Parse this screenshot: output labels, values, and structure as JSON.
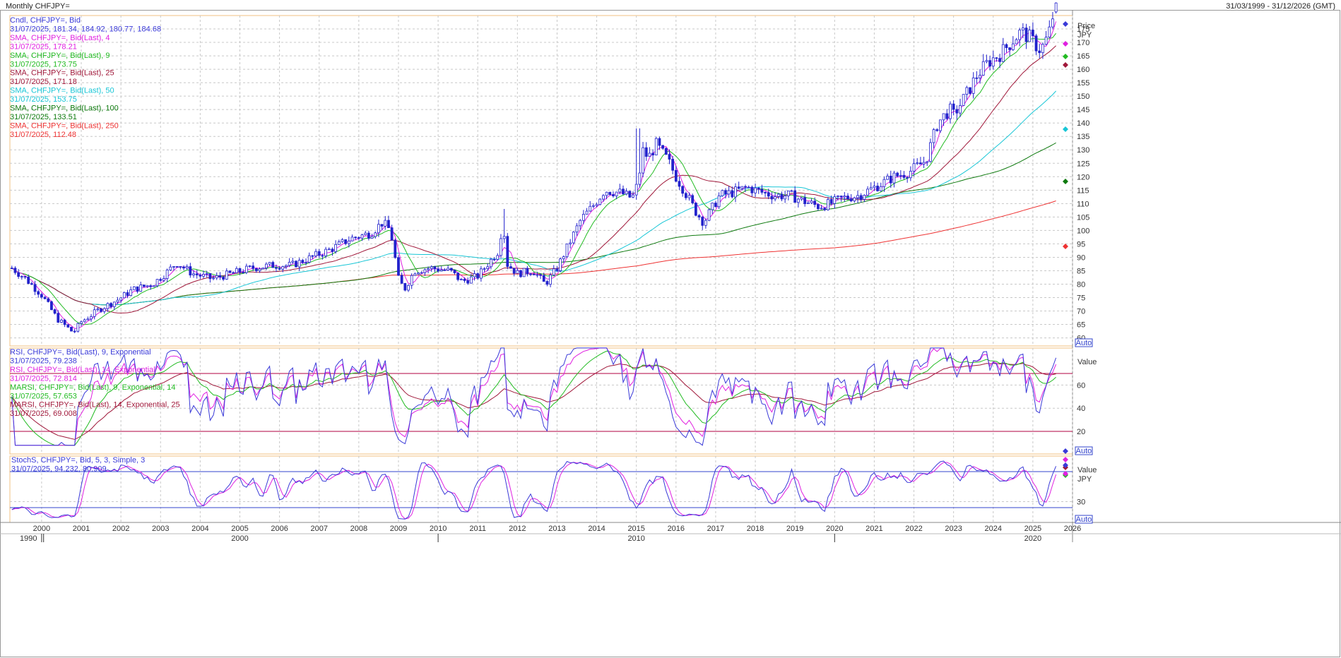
{
  "window": {
    "title": "Monthly CHFJPY=",
    "range": "31/03/1999 - 31/12/2026 (GMT)"
  },
  "price_panel": {
    "unit_label": "Price",
    "currency": "JPY",
    "auto_label": "Auto",
    "ticks": [
      "60",
      "65",
      "70",
      "75",
      "80",
      "85",
      "90",
      "95",
      "100",
      "105",
      "110",
      "115",
      "120",
      "125",
      "130",
      "135",
      "140",
      "145",
      "150",
      "155",
      "160",
      "165",
      "170",
      "175"
    ],
    "legend": [
      {
        "text": "Cndl, CHFJPY=, Bid",
        "color": "#3a3ad8"
      },
      {
        "text": "31/07/2025, 181.34, 184.92, 180.77, 184.68",
        "color": "#3a3ad8"
      },
      {
        "text": "SMA, CHFJPY=, Bid(Last),  4",
        "color": "#e020e0"
      },
      {
        "text": "31/07/2025, 178.21",
        "color": "#e020e0"
      },
      {
        "text": "SMA, CHFJPY=, Bid(Last),  9",
        "color": "#22bb22"
      },
      {
        "text": "31/07/2025, 173.75",
        "color": "#22bb22"
      },
      {
        "text": "SMA, CHFJPY=, Bid(Last),  25",
        "color": "#a0183a"
      },
      {
        "text": "31/07/2025, 171.18",
        "color": "#a0183a"
      },
      {
        "text": "SMA, CHFJPY=, Bid(Last),  50",
        "color": "#18c6d6"
      },
      {
        "text": "31/07/2025, 153.75",
        "color": "#18c6d6"
      },
      {
        "text": "SMA, CHFJPY=, Bid(Last),  100",
        "color": "#0e7a0e"
      },
      {
        "text": "31/07/2025, 133.51",
        "color": "#0e7a0e"
      },
      {
        "text": "SMA, CHFJPY=, Bid(Last),  250",
        "color": "#ee3333"
      },
      {
        "text": "31/07/2025, 112.48",
        "color": "#ee3333"
      }
    ]
  },
  "rsi_panel": {
    "unit_label": "Value",
    "auto_label": "Auto",
    "ticks": [
      "20",
      "40",
      "60"
    ],
    "legend": [
      {
        "text": "RSI, CHFJPY=, Bid(Last),  9, Exponential",
        "color": "#3a3ad8"
      },
      {
        "text": "31/07/2025, 79.238",
        "color": "#3a3ad8"
      },
      {
        "text": "RSI, CHFJPY=, Bid(Last),  14, Exponential",
        "color": "#e020e0"
      },
      {
        "text": "31/07/2025, 72.814",
        "color": "#e020e0"
      },
      {
        "text": "MARSI, CHFJPY=, Bid(Last),  9, Exponential, 14",
        "color": "#22bb22"
      },
      {
        "text": "31/07/2025, 57.653",
        "color": "#22bb22"
      },
      {
        "text": "MARSI, CHFJPY=, Bid(Last),  14, Exponential, 25",
        "color": "#a0183a"
      },
      {
        "text": "31/07/2025, 69.008",
        "color": "#a0183a"
      }
    ]
  },
  "stoch_panel": {
    "unit_label": "Value",
    "currency": "JPY",
    "auto_label": "Auto",
    "ticks": [
      "30"
    ],
    "legend": [
      {
        "text": "StochS, CHFJPY=, Bid,  5, 3, Simple, 3",
        "color": "#3a3ad8"
      },
      {
        "text": "31/07/2025, 94.232, 80.909",
        "color": "#3a3ad8"
      }
    ]
  },
  "x_axis": {
    "years": [
      "2000",
      "2001",
      "2002",
      "2003",
      "2004",
      "2005",
      "2006",
      "2007",
      "2008",
      "2009",
      "2010",
      "2011",
      "2012",
      "2013",
      "2014",
      "2015",
      "2016",
      "2017",
      "2018",
      "2019",
      "2020",
      "2021",
      "2022",
      "2023",
      "2024",
      "2025",
      "2026"
    ],
    "decades": [
      "1990",
      "2000",
      "2010",
      "2020"
    ]
  },
  "chart_data": {
    "type": "candlestick",
    "instrument": "CHFJPY=",
    "frequency": "Monthly",
    "price_anchors": [
      [
        1999.25,
        86
      ],
      [
        1999.6,
        82
      ],
      [
        2000.0,
        76
      ],
      [
        2000.4,
        67
      ],
      [
        2000.8,
        62
      ],
      [
        2001.0,
        66
      ],
      [
        2001.5,
        71
      ],
      [
        2001.9,
        74
      ],
      [
        2002.3,
        78
      ],
      [
        2002.8,
        80
      ],
      [
        2003.2,
        85
      ],
      [
        2003.4,
        88
      ],
      [
        2003.8,
        84
      ],
      [
        2004.3,
        82
      ],
      [
        2004.8,
        84
      ],
      [
        2005.3,
        86
      ],
      [
        2005.8,
        87
      ],
      [
        2006.3,
        87
      ],
      [
        2006.8,
        90
      ],
      [
        2007.3,
        93
      ],
      [
        2007.8,
        97
      ],
      [
        2008.3,
        99
      ],
      [
        2008.6,
        103
      ],
      [
        2008.8,
        100
      ],
      [
        2009.0,
        82
      ],
      [
        2009.15,
        78
      ],
      [
        2009.4,
        85
      ],
      [
        2009.8,
        86
      ],
      [
        2010.3,
        85
      ],
      [
        2010.6,
        81
      ],
      [
        2011.0,
        83
      ],
      [
        2011.5,
        92
      ],
      [
        2011.65,
        104
      ],
      [
        2011.7,
        88
      ],
      [
        2012.0,
        84
      ],
      [
        2012.4,
        85
      ],
      [
        2012.7,
        80
      ],
      [
        2013.0,
        86
      ],
      [
        2013.3,
        95
      ],
      [
        2013.6,
        104
      ],
      [
        2013.9,
        109
      ],
      [
        2014.2,
        115
      ],
      [
        2014.6,
        114
      ],
      [
        2014.9,
        112
      ],
      [
        2015.05,
        118
      ],
      [
        2015.15,
        130
      ],
      [
        2015.3,
        127
      ],
      [
        2015.5,
        132
      ],
      [
        2015.8,
        126
      ],
      [
        2016.0,
        120
      ],
      [
        2016.2,
        115
      ],
      [
        2016.5,
        107
      ],
      [
        2016.7,
        103
      ],
      [
        2016.9,
        108
      ],
      [
        2017.1,
        113
      ],
      [
        2017.4,
        114
      ],
      [
        2017.8,
        116
      ],
      [
        2018.2,
        114
      ],
      [
        2018.5,
        113
      ],
      [
        2018.9,
        113
      ],
      [
        2019.2,
        111
      ],
      [
        2019.6,
        109
      ],
      [
        2019.9,
        110
      ],
      [
        2020.2,
        112
      ],
      [
        2020.6,
        113
      ],
      [
        2021.0,
        116
      ],
      [
        2021.5,
        120
      ],
      [
        2021.9,
        122
      ],
      [
        2022.3,
        126
      ],
      [
        2022.6,
        140
      ],
      [
        2022.9,
        145
      ],
      [
        2023.0,
        143
      ],
      [
        2023.3,
        150
      ],
      [
        2023.6,
        158
      ],
      [
        2023.9,
        163
      ],
      [
        2024.2,
        166
      ],
      [
        2024.5,
        171
      ],
      [
        2024.7,
        174
      ],
      [
        2024.9,
        172
      ],
      [
        2025.2,
        167
      ],
      [
        2025.4,
        173
      ],
      [
        2025.58,
        184.68
      ]
    ],
    "last_candle": {
      "date": "31/07/2025",
      "open": 181.34,
      "high": 184.92,
      "low": 180.77,
      "close": 184.68
    },
    "series": [
      {
        "name": "SMA 4",
        "last": 178.21,
        "color": "#e020e0"
      },
      {
        "name": "SMA 9",
        "last": 173.75,
        "color": "#22bb22"
      },
      {
        "name": "SMA 25",
        "last": 171.18,
        "color": "#a0183a"
      },
      {
        "name": "SMA 50",
        "last": 153.75,
        "color": "#18c6d6"
      },
      {
        "name": "SMA 100",
        "last": 133.51,
        "color": "#0e7a0e"
      },
      {
        "name": "SMA 250",
        "last": 112.48,
        "color": "#ee3333"
      }
    ],
    "rsi": {
      "rsi9_last": 79.238,
      "rsi14_last": 72.814,
      "marsi9_last": 57.653,
      "marsi14_last": 69.008,
      "upper_band": 70,
      "lower_band": 20
    },
    "stochastic": {
      "k_last": 94.232,
      "d_last": 80.909,
      "upper_band": 80,
      "lower_band": 20
    },
    "price_ylim": [
      57,
      180
    ],
    "x_range": [
      1999.2,
      2026.0
    ]
  },
  "colors": {
    "grid": "#c8c8c8",
    "panel_border": "#f0c080",
    "candle": "#2222cc",
    "band": "#b00040",
    "stoch_band": "#3344cc"
  }
}
